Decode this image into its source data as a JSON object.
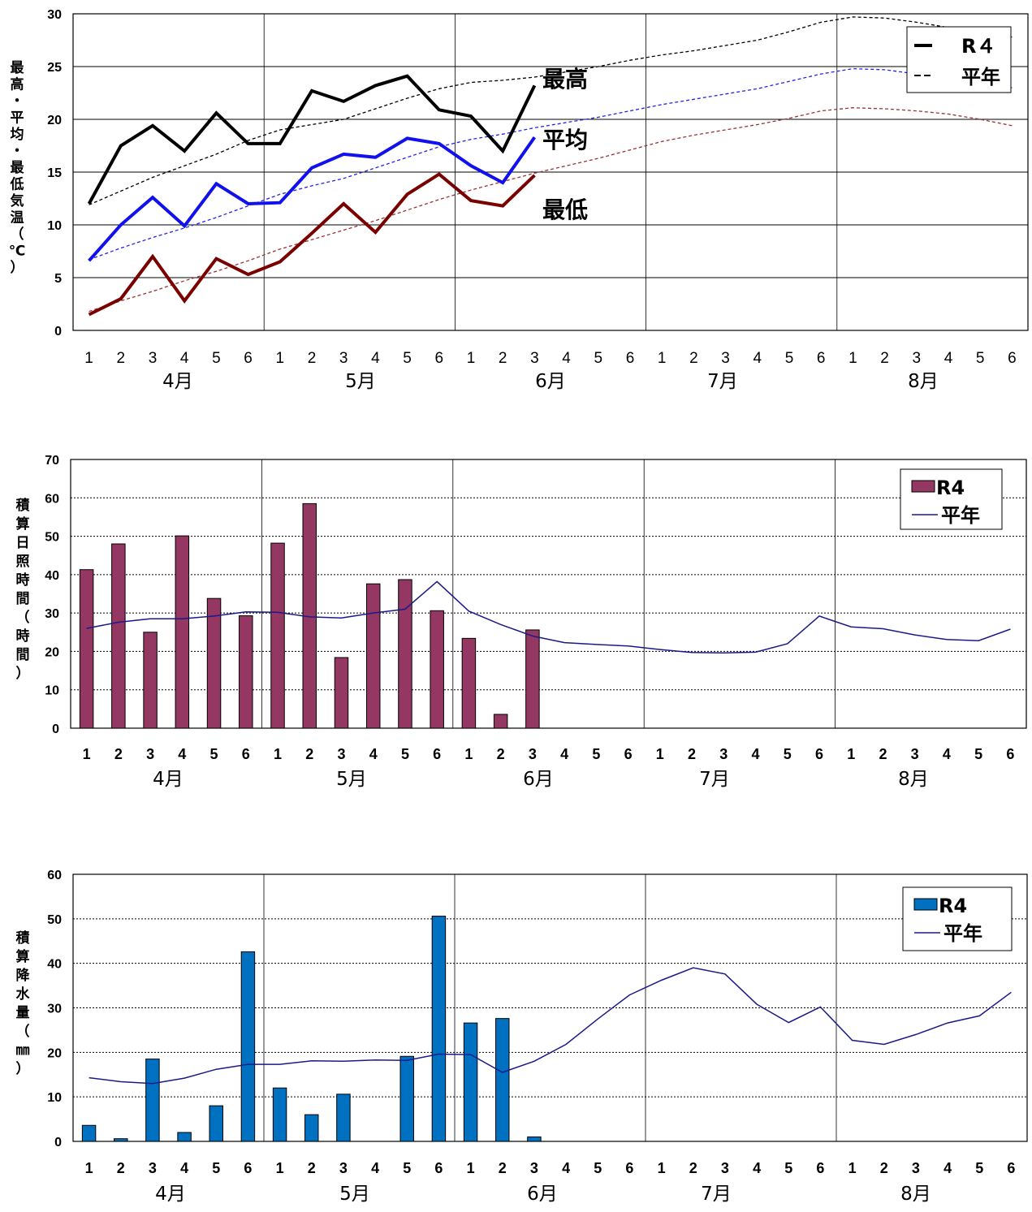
{
  "chart_data": [
    {
      "type": "line",
      "ylabel": "最高・平均・最低気温（℃）",
      "ylim": [
        0,
        30
      ],
      "yticks": [
        "0",
        "5",
        "10",
        "15",
        "20",
        "25",
        "30"
      ],
      "x_ticks": [
        "1",
        "2",
        "3",
        "4",
        "5",
        "6",
        "1",
        "2",
        "3",
        "4",
        "5",
        "6",
        "1",
        "2",
        "3",
        "4",
        "5",
        "6",
        "1",
        "2",
        "3",
        "4",
        "5",
        "6",
        "1",
        "2",
        "3",
        "4",
        "5",
        "6"
      ],
      "months": [
        "4月",
        "5月",
        "6月",
        "7月",
        "8月"
      ],
      "annotations": [
        "最高",
        "平均",
        "最低"
      ],
      "legend": {
        "position": "top-right",
        "entries": [
          "R４",
          "平年"
        ]
      },
      "grid": true,
      "series": [
        {
          "name": "R４ 最高",
          "style": "solid",
          "color": "#000000",
          "values": [
            12.0,
            17.5,
            19.4,
            17.0,
            20.6,
            17.7,
            17.7,
            22.7,
            21.7,
            23.2,
            24.1,
            20.9,
            20.3,
            17.0,
            23.2
          ]
        },
        {
          "name": "R４ 平均",
          "style": "solid",
          "color": "#1111ee",
          "values": [
            6.6,
            10.0,
            12.6,
            9.9,
            13.9,
            12.0,
            12.1,
            15.4,
            16.7,
            16.4,
            18.2,
            17.7,
            15.6,
            14.0,
            18.3
          ]
        },
        {
          "name": "R４ 最低",
          "style": "solid",
          "color": "#7a0000",
          "values": [
            1.5,
            3.0,
            7.0,
            2.8,
            6.8,
            5.3,
            6.5,
            9.2,
            12.0,
            9.3,
            12.9,
            14.8,
            12.3,
            11.8,
            14.7
          ]
        },
        {
          "name": "平年 最高",
          "style": "dashed",
          "color": "#000000",
          "values": [
            11.9,
            13.2,
            14.5,
            15.6,
            16.7,
            18.0,
            19.0,
            19.5,
            20.0,
            21.0,
            22.0,
            22.9,
            23.5,
            23.7,
            24.0,
            24.5,
            25.0,
            25.6,
            26.1,
            26.5,
            27.0,
            27.5,
            28.3,
            29.2,
            29.7,
            29.6,
            29.2,
            28.7,
            28.1,
            27.8
          ]
        },
        {
          "name": "平年 平均",
          "style": "dashed",
          "color": "#2222ee",
          "values": [
            6.7,
            7.8,
            8.8,
            9.7,
            10.7,
            11.8,
            12.9,
            13.7,
            14.4,
            15.4,
            16.4,
            17.4,
            18.1,
            18.6,
            19.2,
            19.7,
            20.2,
            20.8,
            21.4,
            21.9,
            22.4,
            22.9,
            23.6,
            24.3,
            24.8,
            24.7,
            24.3,
            23.8,
            23.3,
            23.0
          ]
        },
        {
          "name": "平年 最低",
          "style": "dashed",
          "color": "#993333",
          "values": [
            1.8,
            2.8,
            3.7,
            4.7,
            5.6,
            6.6,
            7.7,
            8.6,
            9.5,
            10.4,
            11.4,
            12.4,
            13.3,
            14.1,
            14.9,
            15.6,
            16.3,
            17.1,
            17.9,
            18.5,
            19.0,
            19.5,
            20.1,
            20.8,
            21.1,
            21.0,
            20.8,
            20.5,
            20.0,
            19.4
          ]
        }
      ]
    },
    {
      "type": "bar",
      "ylabel": "積算日照時間（時間）",
      "ylim": [
        0,
        70
      ],
      "yticks": [
        "0",
        "10",
        "20",
        "30",
        "40",
        "50",
        "60",
        "70"
      ],
      "x_ticks": [
        "1",
        "2",
        "3",
        "4",
        "5",
        "6",
        "1",
        "2",
        "3",
        "4",
        "5",
        "6",
        "1",
        "2",
        "3",
        "4",
        "5",
        "6",
        "1",
        "2",
        "3",
        "4",
        "5",
        "6",
        "1",
        "2",
        "3",
        "4",
        "5",
        "6"
      ],
      "months": [
        "4月",
        "5月",
        "6月",
        "7月",
        "8月"
      ],
      "legend": {
        "position": "top-right",
        "entries": [
          "R4",
          "平年"
        ]
      },
      "grid": true,
      "series": [
        {
          "name": "R4",
          "kind": "bar",
          "color": "#943763",
          "values": [
            41.3,
            48.0,
            25.0,
            50.1,
            33.8,
            29.3,
            48.2,
            58.5,
            18.4,
            37.6,
            38.7,
            30.6,
            23.4,
            3.6,
            25.6
          ]
        },
        {
          "name": "平年",
          "kind": "line",
          "color": "#1a1a8a",
          "values": [
            26.0,
            27.6,
            28.5,
            28.5,
            29.2,
            30.3,
            30.2,
            29.0,
            28.7,
            30.0,
            31.0,
            38.2,
            30.5,
            27.0,
            24.0,
            22.3,
            21.8,
            21.4,
            20.5,
            19.7,
            19.6,
            19.8,
            22.0,
            29.2,
            26.4,
            25.9,
            24.3,
            23.1,
            22.8,
            25.8
          ]
        }
      ]
    },
    {
      "type": "bar",
      "ylabel": "積算降水量（㎜）",
      "ylim": [
        0,
        60
      ],
      "yticks": [
        "0",
        "10",
        "20",
        "30",
        "40",
        "50",
        "60"
      ],
      "x_ticks": [
        "1",
        "2",
        "3",
        "4",
        "5",
        "6",
        "1",
        "2",
        "3",
        "4",
        "5",
        "6",
        "1",
        "2",
        "3",
        "4",
        "5",
        "6",
        "1",
        "2",
        "3",
        "4",
        "5",
        "6",
        "1",
        "2",
        "3",
        "4",
        "5",
        "6"
      ],
      "months": [
        "4月",
        "5月",
        "6月",
        "7月",
        "8月"
      ],
      "legend": {
        "position": "top-right",
        "entries": [
          "R4",
          "平年"
        ]
      },
      "grid": true,
      "series": [
        {
          "name": "R4",
          "kind": "bar",
          "color": "#0070c0",
          "values": [
            3.6,
            0.6,
            18.5,
            2.0,
            8.0,
            42.6,
            12.0,
            6.0,
            10.6,
            0.0,
            19.1,
            50.6,
            26.6,
            27.6,
            1.0
          ]
        },
        {
          "name": "平年",
          "kind": "line",
          "color": "#1a1a8a",
          "values": [
            14.3,
            13.4,
            13.0,
            14.2,
            16.2,
            17.3,
            17.3,
            18.1,
            18.0,
            18.3,
            18.2,
            19.6,
            19.5,
            15.5,
            18.0,
            21.8,
            27.5,
            32.9,
            36.2,
            39.0,
            37.6,
            30.8,
            26.7,
            30.2,
            22.7,
            21.8,
            24.0,
            26.6,
            28.2,
            33.5
          ]
        }
      ]
    }
  ]
}
